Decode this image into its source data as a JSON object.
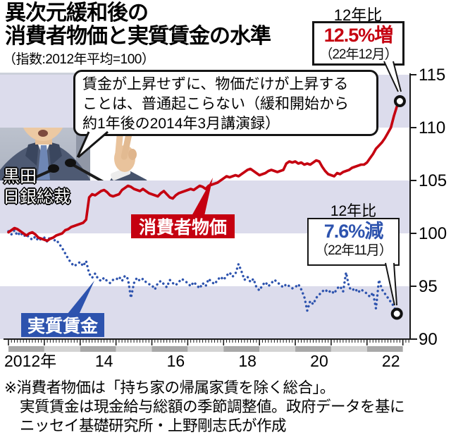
{
  "title": {
    "line1": "異次元緩和後の",
    "line2": "消費者物価と実質賃金の水準"
  },
  "subtitle": "（指数:2012年平均=100）",
  "quote_bubble": {
    "line1": "賃金が上昇せずに、物価だけが上昇する",
    "line2": "ことは、普通起こらない（緩和開始から",
    "line3": "約1年後の2014年3月講演録）"
  },
  "photo_caption": {
    "line1": "黒田",
    "line2": "日銀総裁"
  },
  "series_labels": {
    "cpi": "消費者物価",
    "wage": "実質賃金"
  },
  "annotations": {
    "cpi_callout": {
      "label": "12年比",
      "value": "12.5%増",
      "date": "（22年12月）"
    },
    "wage_callout": {
      "label": "12年比",
      "value": "7.6%減",
      "date": "（22年11月）"
    }
  },
  "footnote": {
    "line1": "※消費者物価は「持ち家の帰属家賃を除く総合」。",
    "line2": "実質賃金は現金給与総額の季節調整値。政府データを基に",
    "line3": "ニッセイ基礎研究所・上野剛志氏が作成"
  },
  "colors": {
    "cpi": "#c50010",
    "wage": "#2d53ae",
    "band": "#dcdcec",
    "axis": "#1a1a1a",
    "year_bar_dark": "#a8a8a8",
    "year_bar_light": "#d3d3d3"
  },
  "chart_data": {
    "type": "line",
    "title": "異次元緩和後の消費者物価と実質賃金の水準",
    "index_note": "指数:2012年平均=100",
    "x_start": "2012-01",
    "frequency": "monthly",
    "x_tick_labels": [
      "2012年",
      "14",
      "16",
      "18",
      "20",
      "22"
    ],
    "years": [
      2012,
      2013,
      2014,
      2015,
      2016,
      2017,
      2018,
      2019,
      2020,
      2021,
      2022
    ],
    "ylim": [
      90,
      115
    ],
    "y_ticks": [
      115,
      110,
      105,
      100,
      95,
      90
    ],
    "grid": "alternating horizontal bands shaded for 90-95, 100-105, 110-115",
    "legend_position": "inline labels on chart",
    "series": [
      {
        "name": "消費者物価",
        "style": "solid",
        "color": "#c50010",
        "end_point": {
          "date": "2022-12",
          "value": 112.5,
          "change_vs_2012": "+12.5%"
        },
        "values": [
          100.1,
          100.3,
          100.5,
          100.4,
          100.2,
          100.0,
          99.8,
          100.0,
          100.1,
          99.9,
          99.6,
          99.5,
          99.4,
          99.3,
          99.5,
          99.6,
          99.8,
          99.9,
          100.0,
          100.3,
          100.4,
          100.6,
          100.7,
          100.8,
          100.9,
          101.0,
          101.3,
          103.4,
          103.7,
          103.6,
          103.8,
          104.0,
          104.1,
          103.9,
          103.6,
          103.5,
          103.6,
          103.7,
          104.1,
          104.3,
          104.5,
          104.4,
          104.2,
          104.1,
          104.0,
          104.2,
          104.0,
          103.8,
          103.7,
          103.6,
          103.5,
          103.8,
          104.0,
          103.7,
          103.4,
          103.3,
          103.6,
          103.8,
          103.9,
          104.0,
          104.1,
          104.2,
          104.1,
          104.3,
          104.5,
          104.4,
          104.2,
          104.5,
          104.6,
          104.7,
          104.8,
          105.0,
          105.2,
          105.4,
          105.3,
          105.4,
          105.5,
          105.4,
          105.6,
          105.8,
          106.0,
          106.1,
          105.9,
          105.7,
          105.5,
          105.6,
          105.7,
          105.9,
          106.0,
          105.9,
          105.8,
          105.9,
          106.0,
          106.6,
          106.8,
          106.7,
          106.8,
          106.6,
          106.7,
          106.5,
          106.6,
          106.5,
          106.7,
          106.9,
          106.8,
          106.3,
          105.9,
          105.6,
          105.5,
          105.4,
          105.7,
          105.6,
          105.8,
          105.9,
          106.0,
          106.2,
          106.3,
          106.4,
          106.5,
          106.5,
          106.7,
          107.1,
          107.5,
          108.0,
          108.3,
          108.6,
          109.0,
          109.5,
          110.0,
          111.1,
          112.0,
          112.5
        ]
      },
      {
        "name": "実質賃金",
        "style": "dotted",
        "color": "#2d53ae",
        "end_point": {
          "date": "2022-11",
          "value": 92.4,
          "change_vs_2012": "-7.6%"
        },
        "values": [
          100.2,
          99.9,
          100.3,
          99.8,
          100.1,
          99.7,
          99.9,
          99.6,
          99.4,
          99.7,
          99.3,
          99.5,
          99.6,
          99.2,
          99.7,
          99.3,
          99.4,
          99.0,
          98.6,
          98.1,
          97.6,
          97.2,
          96.9,
          97.1,
          97.3,
          96.9,
          97.4,
          96.2,
          95.8,
          96.2,
          95.7,
          95.5,
          95.8,
          95.5,
          95.3,
          95.6,
          95.6,
          95.9,
          95.5,
          96.0,
          95.7,
          93.9,
          95.3,
          95.8,
          95.5,
          95.7,
          95.4,
          95.2,
          95.1,
          94.7,
          95.3,
          95.5,
          95.2,
          94.9,
          95.6,
          95.3,
          95.1,
          95.4,
          95.7,
          95.5,
          95.3,
          95.0,
          95.4,
          95.1,
          94.8,
          95.3,
          95.0,
          95.7,
          95.4,
          95.2,
          95.6,
          95.9,
          95.6,
          96.0,
          96.3,
          95.9,
          96.2,
          97.1,
          96.4,
          95.6,
          95.9,
          95.4,
          95.7,
          94.9,
          94.6,
          95.1,
          95.4,
          95.0,
          95.3,
          95.6,
          95.4,
          95.1,
          94.9,
          95.2,
          95.0,
          94.8,
          94.9,
          95.2,
          94.7,
          94.0,
          92.7,
          93.6,
          93.3,
          93.9,
          94.2,
          94.5,
          94.7,
          94.4,
          94.6,
          94.3,
          94.8,
          95.0,
          94.5,
          96.3,
          94.9,
          94.6,
          94.8,
          94.4,
          94.7,
          94.5,
          94.3,
          94.0,
          94.4,
          92.9,
          95.6,
          94.7,
          94.3,
          93.9,
          93.5,
          93.1,
          92.4
        ]
      }
    ]
  }
}
